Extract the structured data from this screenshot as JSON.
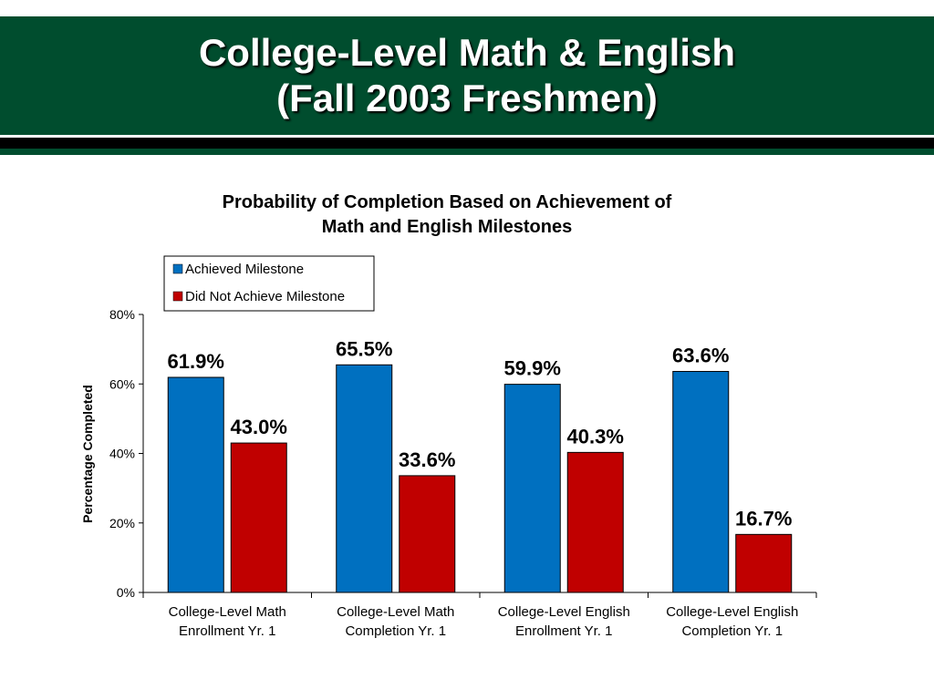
{
  "header": {
    "title_line1": "College-Level Math & English",
    "title_line2": "(Fall 2003 Freshmen)"
  },
  "colors": {
    "header_green": "#004d2e",
    "achieved": "#0070c0",
    "not_achieved": "#c00000"
  },
  "chart_data": {
    "type": "bar",
    "title": [
      "Probability of Completion Based on Achievement of",
      "Math and English Milestones"
    ],
    "ylabel": "Percentage Completed",
    "xlabel": "",
    "ylim": [
      0,
      80
    ],
    "yticks": [
      "0%",
      "20%",
      "40%",
      "60%",
      "80%"
    ],
    "categories": [
      [
        "College-Level Math",
        "Enrollment Yr. 1"
      ],
      [
        "College-Level Math",
        "Completion Yr. 1"
      ],
      [
        "College-Level English",
        "Enrollment Yr. 1"
      ],
      [
        "College-Level English",
        "Completion Yr. 1"
      ]
    ],
    "series": [
      {
        "name": "Achieved Milestone",
        "values": [
          61.9,
          65.5,
          59.9,
          63.6
        ],
        "labels": [
          "61.9%",
          "65.5%",
          "59.9%",
          "63.6%"
        ]
      },
      {
        "name": "Did Not Achieve Milestone",
        "values": [
          43.0,
          33.6,
          40.3,
          16.7
        ],
        "labels": [
          "43.0%",
          "33.6%",
          "40.3%",
          "16.7%"
        ]
      }
    ],
    "legend": "top-left",
    "grid": false
  }
}
